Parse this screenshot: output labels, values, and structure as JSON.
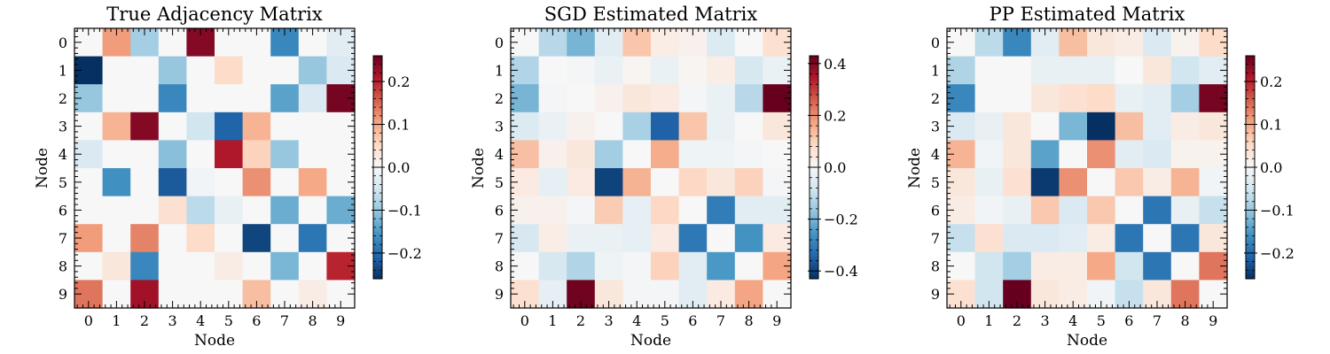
{
  "chart_data": [
    {
      "type": "heatmap",
      "title": "True Adjacency Matrix",
      "xlabel": "Node",
      "ylabel": "Node",
      "x_categories": [
        "0",
        "1",
        "2",
        "3",
        "4",
        "5",
        "6",
        "7",
        "8",
        "9"
      ],
      "y_categories": [
        "0",
        "1",
        "2",
        "3",
        "4",
        "5",
        "6",
        "7",
        "8",
        "9"
      ],
      "colormap": "RdBu_r",
      "vmin": -0.26,
      "vmax": 0.26,
      "colorbar_ticks": [
        -0.2,
        -0.1,
        0.0,
        0.1,
        0.2
      ],
      "colorbar_tick_labels": [
        "−0.2",
        "−0.1",
        "0.0",
        "0.1",
        "0.2"
      ],
      "values": [
        [
          0,
          0.11,
          -0.09,
          0,
          0.24,
          0,
          0,
          -0.17,
          0,
          -0.03
        ],
        [
          -0.26,
          0,
          0,
          -0.1,
          0,
          0.05,
          0,
          0,
          -0.1,
          -0.04
        ],
        [
          -0.1,
          0,
          0,
          -0.17,
          0,
          0,
          0,
          -0.14,
          -0.04,
          0.25
        ],
        [
          0,
          0.09,
          0.24,
          0,
          -0.05,
          -0.21,
          0.09,
          0,
          0,
          0
        ],
        [
          -0.04,
          0,
          0,
          -0.11,
          0,
          0.21,
          0.06,
          -0.1,
          0,
          0
        ],
        [
          0,
          -0.16,
          0,
          -0.22,
          -0.01,
          0,
          0.12,
          0,
          0.1,
          0
        ],
        [
          0,
          0,
          0,
          0.04,
          -0.07,
          -0.02,
          0,
          -0.13,
          0,
          -0.13
        ],
        [
          0.11,
          0,
          0.13,
          0,
          0.05,
          0,
          -0.24,
          0,
          -0.19,
          0
        ],
        [
          0,
          0.03,
          -0.17,
          0,
          0,
          0.02,
          0,
          -0.12,
          0,
          0.2
        ],
        [
          0.14,
          0,
          0.22,
          0,
          0,
          0,
          0.08,
          0,
          0.02,
          0
        ]
      ]
    },
    {
      "type": "heatmap",
      "title": "SGD Estimated Matrix",
      "xlabel": "Node",
      "ylabel": "Node",
      "x_categories": [
        "0",
        "1",
        "2",
        "3",
        "4",
        "5",
        "6",
        "7",
        "8",
        "9"
      ],
      "y_categories": [
        "0",
        "1",
        "2",
        "3",
        "4",
        "5",
        "6",
        "7",
        "8",
        "9"
      ],
      "colormap": "RdBu_r",
      "vmin": -0.43,
      "vmax": 0.43,
      "colorbar_ticks": [
        -0.4,
        -0.2,
        0.0,
        0.2,
        0.4
      ],
      "colorbar_tick_labels": [
        "−0.4",
        "−0.2",
        "0.0",
        "0.2",
        "0.4"
      ],
      "values": [
        [
          0,
          -0.12,
          -0.2,
          -0.05,
          0.12,
          0.03,
          0.02,
          -0.06,
          0,
          0.07
        ],
        [
          -0.13,
          0,
          -0.01,
          -0.03,
          0.01,
          -0.03,
          0.01,
          0.03,
          -0.07,
          -0.03
        ],
        [
          -0.2,
          -0.01,
          0,
          0.02,
          0.05,
          0.04,
          -0.01,
          -0.03,
          -0.12,
          0.43
        ],
        [
          -0.06,
          -0.03,
          0.02,
          0,
          -0.14,
          -0.35,
          0.12,
          -0.03,
          0,
          0.05
        ],
        [
          0.13,
          0.02,
          0.05,
          -0.15,
          0,
          0.16,
          -0.02,
          -0.02,
          -0.01,
          0
        ],
        [
          0.04,
          -0.04,
          0.04,
          -0.4,
          0.15,
          0,
          0.09,
          0.05,
          0.1,
          -0.01
        ],
        [
          0.02,
          0.02,
          -0.01,
          0.11,
          -0.04,
          0.09,
          0,
          -0.3,
          -0.05,
          -0.05
        ],
        [
          -0.07,
          0.03,
          -0.03,
          -0.03,
          -0.04,
          0.04,
          -0.31,
          0,
          -0.26,
          0.04
        ],
        [
          0,
          -0.07,
          -0.13,
          -0.02,
          -0.01,
          0.1,
          -0.05,
          -0.25,
          0,
          0.17
        ],
        [
          0.07,
          -0.04,
          0.42,
          0.05,
          -0.01,
          -0.01,
          -0.05,
          0.04,
          0.17,
          0
        ]
      ]
    },
    {
      "type": "heatmap",
      "title": "PP Estimated Matrix",
      "xlabel": "Node",
      "ylabel": "Node",
      "x_categories": [
        "0",
        "1",
        "2",
        "3",
        "4",
        "5",
        "6",
        "7",
        "8",
        "9"
      ],
      "y_categories": [
        "0",
        "1",
        "2",
        "3",
        "4",
        "5",
        "6",
        "7",
        "8",
        "9"
      ],
      "colormap": "RdBu_r",
      "vmin": -0.26,
      "vmax": 0.26,
      "colorbar_ticks": [
        -0.2,
        -0.1,
        0.0,
        0.1,
        0.2
      ],
      "colorbar_tick_labels": [
        "−0.2",
        "−0.1",
        "0.0",
        "0.1",
        "0.2"
      ],
      "values": [
        [
          0,
          -0.07,
          -0.17,
          -0.03,
          0.08,
          0.03,
          0.02,
          -0.04,
          0.01,
          0.05
        ],
        [
          -0.08,
          0,
          0,
          -0.02,
          -0.02,
          -0.02,
          0,
          0.03,
          -0.05,
          -0.03
        ],
        [
          -0.17,
          0,
          0,
          0.03,
          0.04,
          0.05,
          -0.02,
          -0.03,
          -0.09,
          0.25
        ],
        [
          -0.04,
          -0.02,
          0.03,
          0,
          -0.12,
          -0.26,
          0.08,
          -0.03,
          0.02,
          0.03
        ],
        [
          0.09,
          -0.01,
          0.03,
          -0.14,
          0,
          0.12,
          -0.03,
          -0.04,
          0.01,
          0.01
        ],
        [
          0.03,
          -0.02,
          0.04,
          -0.25,
          0.12,
          0,
          0.07,
          0.02,
          0.09,
          -0.01
        ],
        [
          0.02,
          -0.01,
          -0.02,
          0.07,
          -0.04,
          0.07,
          0,
          -0.19,
          -0.02,
          -0.06
        ],
        [
          -0.06,
          0.04,
          -0.04,
          -0.04,
          -0.03,
          0.02,
          -0.19,
          0,
          -0.19,
          0.03
        ],
        [
          0,
          -0.05,
          -0.09,
          0.02,
          0.02,
          0.1,
          -0.05,
          -0.19,
          0,
          0.14
        ],
        [
          0.04,
          -0.05,
          0.26,
          0.03,
          0.02,
          -0.01,
          -0.06,
          0.03,
          0.14,
          0
        ]
      ]
    }
  ]
}
